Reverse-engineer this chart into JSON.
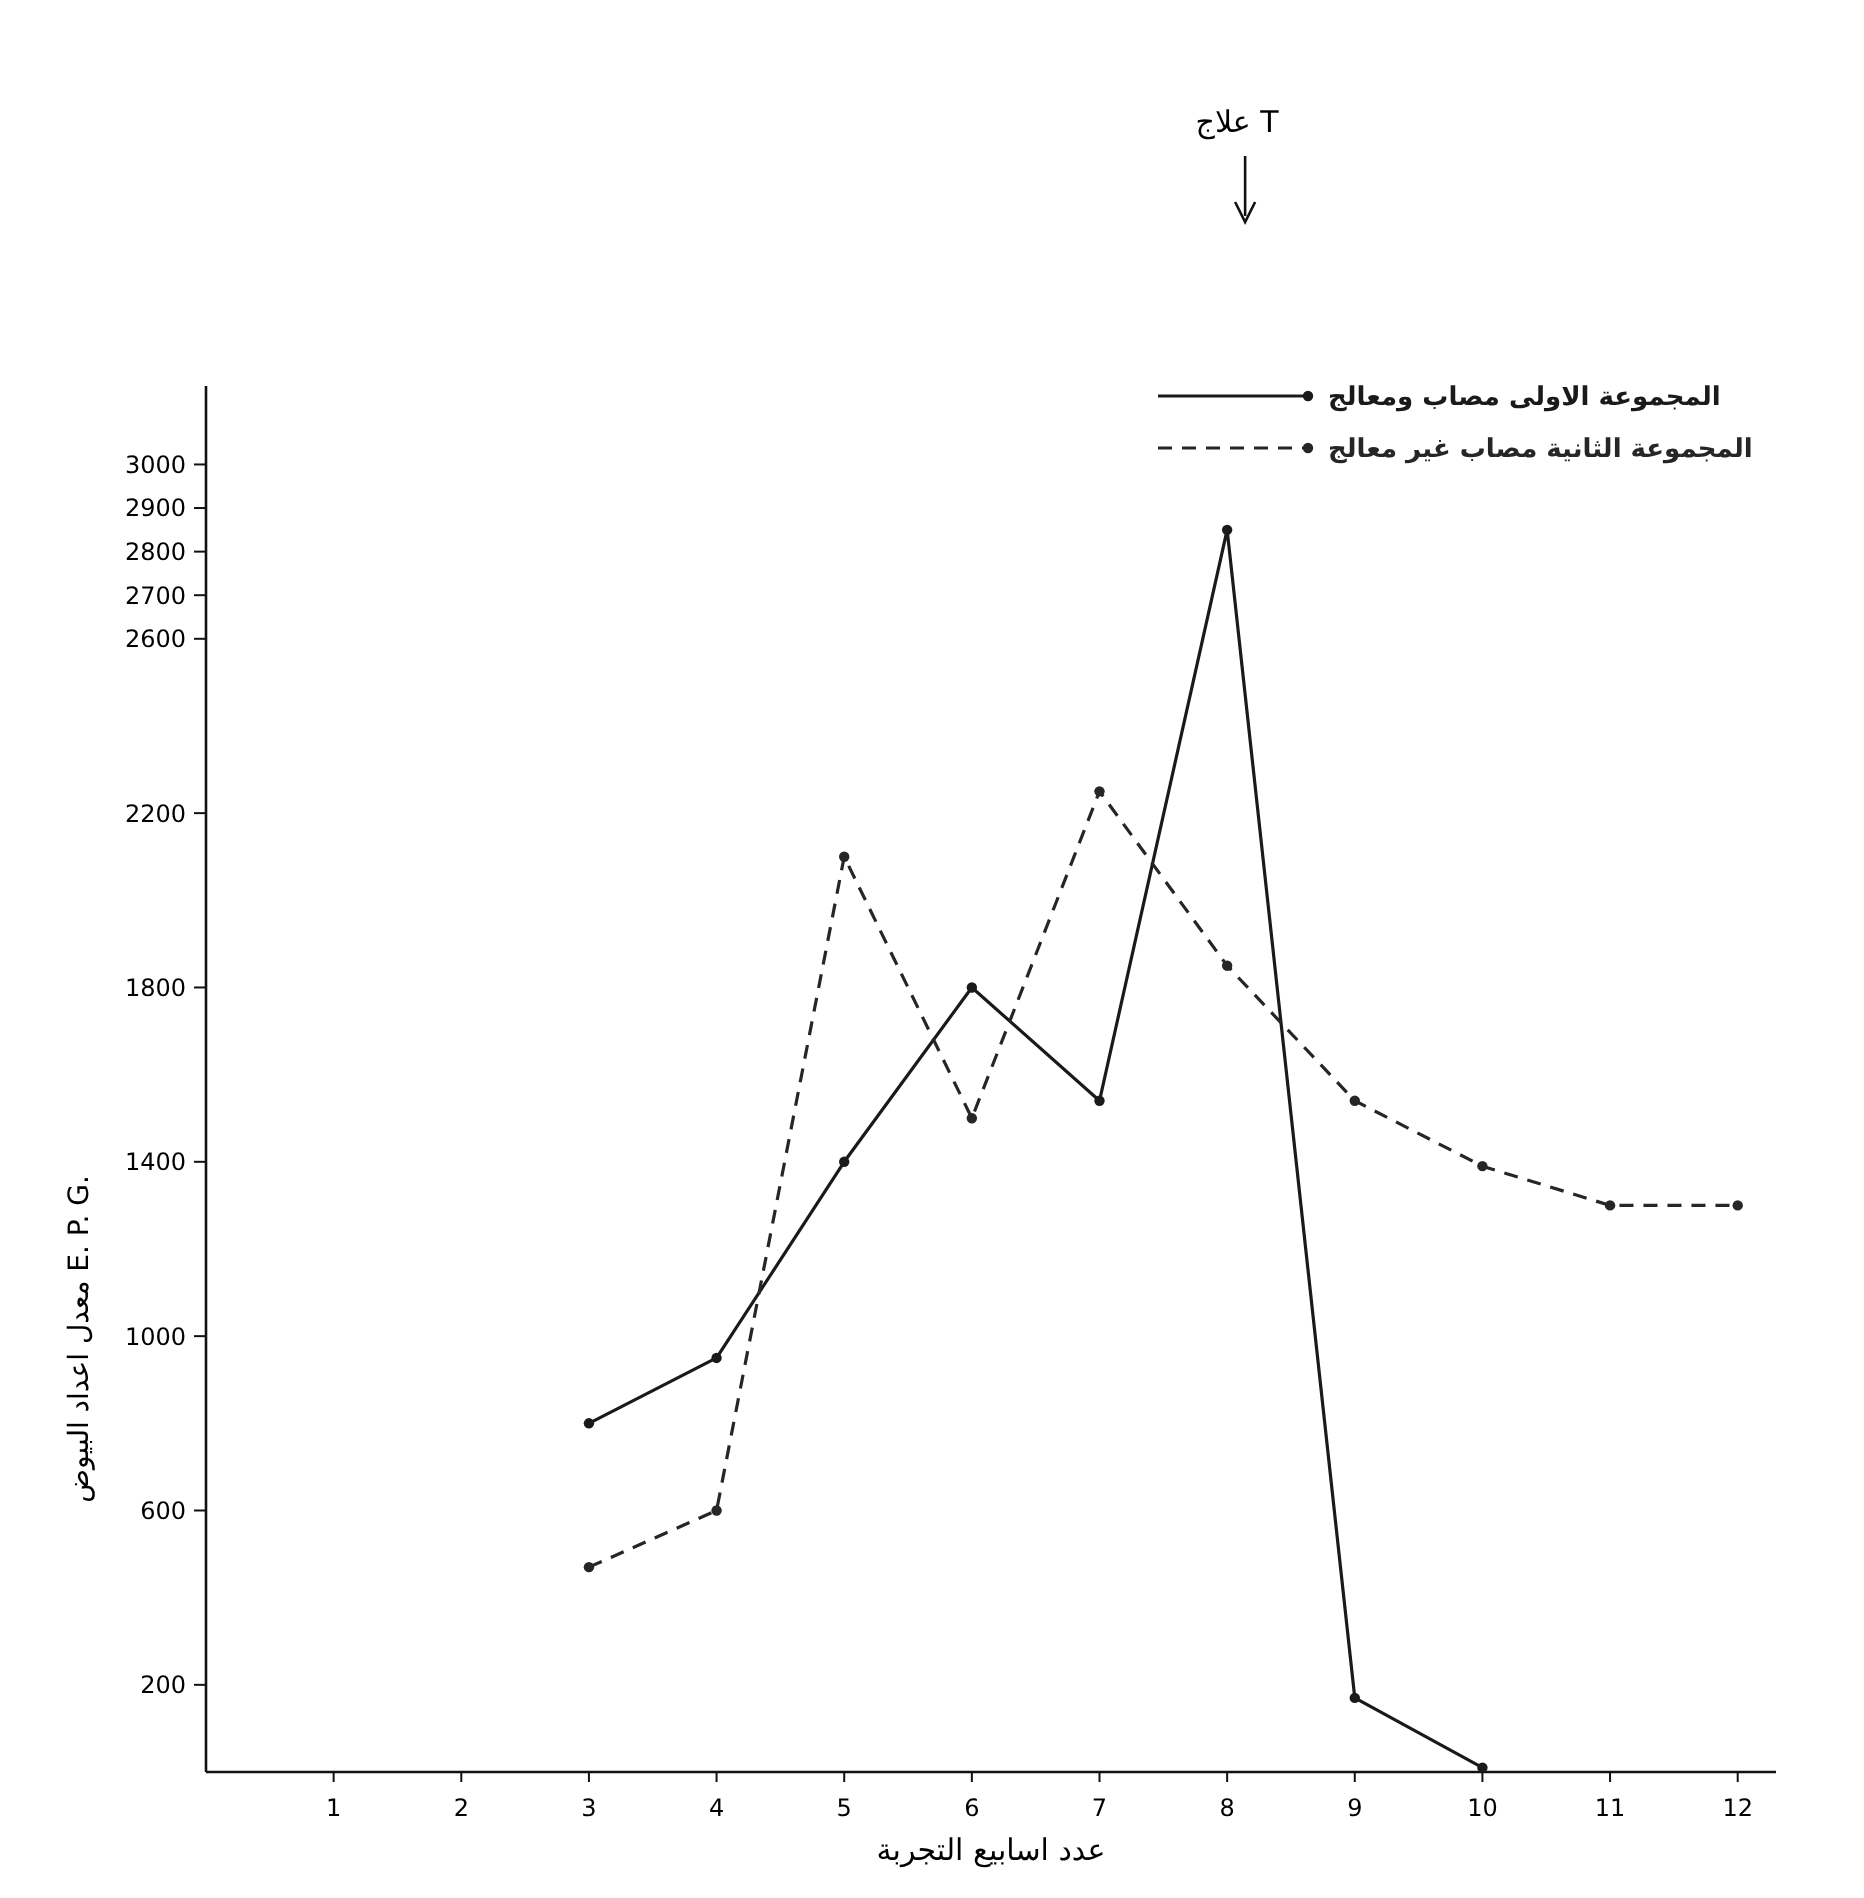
{
  "chart_data": {
    "type": "line",
    "xlabel": "عدد اسابيع التجربة",
    "ylabel": "معدل اعداد البيوض E. P. G.",
    "x": [
      3,
      4,
      5,
      6,
      7,
      8,
      9,
      10,
      11,
      12
    ],
    "xlim": [
      0,
      12.3
    ],
    "xticks": [
      1,
      2,
      3,
      4,
      5,
      6,
      7,
      8,
      9,
      10,
      11,
      12
    ],
    "ylim": [
      0,
      3180
    ],
    "yticks": [
      200,
      600,
      1000,
      1400,
      1800,
      2200,
      2600,
      2700,
      2800,
      2900,
      3000
    ],
    "series": [
      {
        "name": "المجموعة الاولى مصاب ومعالج",
        "color": "#1a1a1a",
        "line_style": "solid",
        "values": [
          800,
          950,
          1400,
          1800,
          1540,
          2850,
          170,
          10,
          null,
          null
        ]
      },
      {
        "name": "المجموعة الثانية مصاب غير معالج",
        "color": "#262626",
        "line_style": "dashed",
        "values": [
          470,
          600,
          2100,
          1500,
          2250,
          1850,
          1540,
          1390,
          1300,
          1300
        ]
      }
    ],
    "marker": "circle",
    "grid": false,
    "legend": "top right",
    "annotations": [
      "علاج T"
    ]
  }
}
